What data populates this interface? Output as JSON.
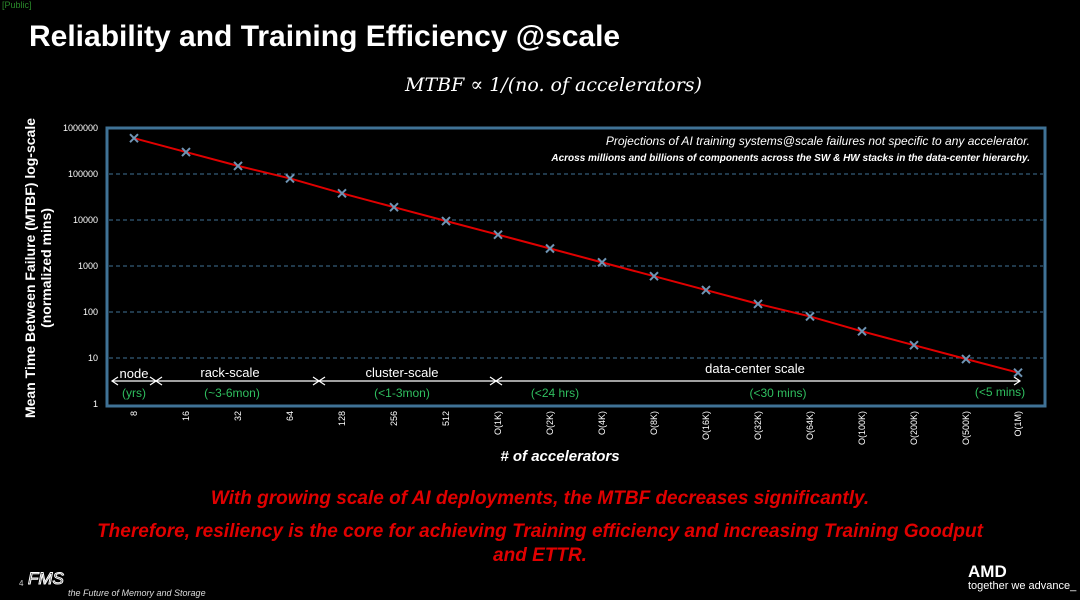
{
  "header": {
    "public_tag": "[Public]",
    "title": "Reliability and Training Efficiency @scale",
    "formula": "MTBF  ∝ 1/(no. of accelerators)"
  },
  "notes": {
    "line1": "Projections of AI training systems@scale failures not specific to any accelerator.",
    "line2": "Across millions and billions of components across the SW & HW stacks in the data-center hierarchy."
  },
  "chart_data": {
    "type": "line",
    "title": "",
    "xlabel": "# of accelerators",
    "ylabel": "Mean Time Between Failure (MTBF) log-scale (normalized mins)",
    "yscale": "log",
    "ylim": [
      1,
      1000000
    ],
    "yticks": [
      "1000000",
      "100000",
      "10000",
      "1000",
      "100",
      "10",
      "1"
    ],
    "categories": [
      "8",
      "16",
      "32",
      "64",
      "128",
      "256",
      "512",
      "O(1K)",
      "O(2K)",
      "O(4K)",
      "O(8K)",
      "O(16K)",
      "O(32K)",
      "O(64K)",
      "O(100K)",
      "O(200K)",
      "O(500K)",
      "O(1M)"
    ],
    "series": [
      {
        "name": "MTBF",
        "color": "#e00000",
        "marker_color": "#6f94b4",
        "values": [
          600000,
          300000,
          150000,
          80000,
          38000,
          19000,
          9500,
          4800,
          2400,
          1200,
          600,
          300,
          150,
          80,
          38,
          19,
          9.5,
          4.8
        ]
      }
    ],
    "scale_segments": [
      {
        "name": "node",
        "range": "(yrs)"
      },
      {
        "name": "rack-scale",
        "range": "(~3-6mon)"
      },
      {
        "name": "cluster-scale",
        "range": "(<1-3mon)"
      },
      {
        "name": "data-center scale",
        "range": ""
      }
    ],
    "dc_ranges": [
      "(<24 hrs)",
      "(<30 mins)",
      "(<5 mins)"
    ]
  },
  "conclusion": {
    "line1": "With growing scale of AI deployments, the MTBF decreases significantly.",
    "line2": "Therefore, resiliency is the core for achieving Training efficiency and increasing Training Goodput",
    "line3": "and ETTR."
  },
  "footer": {
    "page_number": "4",
    "fms_logo": "FMS",
    "fms_tagline": "the Future of Memory and Storage",
    "amd_logo": "AMD",
    "amd_tagline": "together we advance_"
  }
}
